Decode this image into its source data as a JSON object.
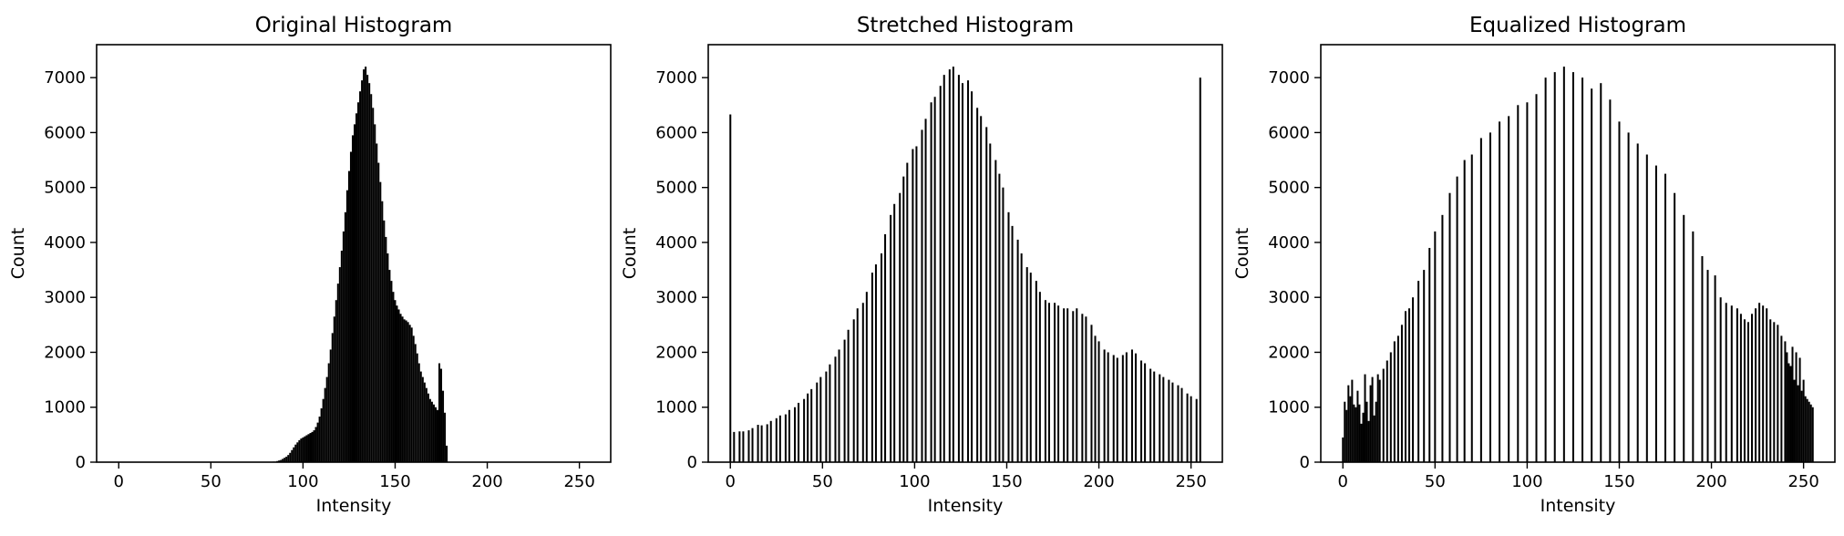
{
  "figure": {
    "background": "#ffffff",
    "bar_color": "#000000"
  },
  "chart_data": [
    {
      "type": "bar",
      "title": "Original Histogram",
      "xlabel": "Intensity",
      "ylabel": "Count",
      "xlim": [
        -12,
        267
      ],
      "ylim": [
        0,
        7600
      ],
      "xticks": [
        0,
        50,
        100,
        150,
        200,
        250
      ],
      "yticks": [
        0,
        1000,
        2000,
        3000,
        4000,
        5000,
        6000,
        7000
      ],
      "bar_width": 1,
      "series": [
        {
          "description": "Pixel counts per intensity 0-255 (counts are 0 outside 84-205)",
          "x_start": 84,
          "values": [
            10,
            10,
            20,
            30,
            40,
            60,
            80,
            100,
            130,
            170,
            220,
            270,
            320,
            360,
            400,
            430,
            450,
            470,
            490,
            510,
            530,
            550,
            580,
            640,
            720,
            830,
            980,
            1150,
            1350,
            1550,
            1800,
            2050,
            2350,
            2650,
            2950,
            3250,
            3550,
            3850,
            4200,
            4550,
            4950,
            5300,
            5650,
            5950,
            6150,
            6350,
            6550,
            6750,
            6950,
            7150,
            7200,
            7050,
            6900,
            6700,
            6450,
            6150,
            5800,
            5450,
            5100,
            4750,
            4400,
            4100,
            3800,
            3500,
            3300,
            3100,
            2950,
            2850,
            2780,
            2700,
            2650,
            2600,
            2580,
            2550,
            2500,
            2450,
            2300,
            2150,
            1980,
            1800,
            1650,
            1550,
            1450,
            1350,
            1250,
            1150,
            1100,
            1050,
            1000,
            950,
            1800,
            1700,
            1300,
            900,
            300,
            0,
            0,
            0,
            0,
            0,
            0,
            0,
            0,
            0,
            0,
            0,
            0,
            0,
            0,
            0,
            0,
            0,
            0,
            0,
            0,
            0,
            0,
            0,
            0,
            0,
            0,
            0,
            0
          ]
        }
      ]
    },
    {
      "type": "bar",
      "title": "Stretched Histogram",
      "xlabel": "Intensity",
      "ylabel": "Count",
      "xlim": [
        -12,
        267
      ],
      "ylim": [
        0,
        7600
      ],
      "xticks": [
        0,
        50,
        100,
        150,
        200,
        250
      ],
      "yticks": [
        0,
        1000,
        2000,
        3000,
        4000,
        5000,
        6000,
        7000
      ],
      "bar_width": 1,
      "series": [
        {
          "x": [
            0,
            2,
            5,
            7,
            10,
            12,
            15,
            17,
            20,
            22,
            25,
            27,
            30,
            32,
            35,
            37,
            40,
            42,
            44,
            47,
            49,
            52,
            54,
            57,
            59,
            62,
            64,
            67,
            69,
            72,
            74,
            77,
            79,
            82,
            84,
            87,
            89,
            92,
            94,
            96,
            99,
            101,
            104,
            106,
            109,
            111,
            114,
            116,
            119,
            121,
            124,
            126,
            129,
            131,
            134,
            136,
            139,
            141,
            144,
            146,
            148,
            151,
            153,
            156,
            158,
            161,
            163,
            166,
            168,
            171,
            173,
            176,
            178,
            181,
            183,
            186,
            188,
            191,
            193,
            196,
            198,
            200,
            203,
            205,
            208,
            210,
            213,
            215,
            218,
            220,
            223,
            225,
            228,
            230,
            233,
            235,
            238,
            240,
            243,
            245,
            248,
            250,
            253,
            255
          ],
          "y": [
            6330,
            550,
            560,
            560,
            580,
            620,
            680,
            670,
            690,
            750,
            800,
            850,
            870,
            950,
            1000,
            1080,
            1150,
            1250,
            1330,
            1450,
            1550,
            1650,
            1780,
            1920,
            2050,
            2230,
            2410,
            2600,
            2800,
            2900,
            3100,
            3450,
            3600,
            3800,
            4150,
            4500,
            4700,
            4900,
            5200,
            5450,
            5700,
            5750,
            6050,
            6250,
            6550,
            6650,
            6850,
            7050,
            7150,
            7200,
            7050,
            6900,
            6950,
            6750,
            6450,
            6300,
            6100,
            5800,
            5500,
            5250,
            5000,
            4550,
            4300,
            4050,
            3800,
            3550,
            3450,
            3300,
            3100,
            2950,
            2900,
            2900,
            2850,
            2800,
            2800,
            2750,
            2800,
            2700,
            2650,
            2500,
            2300,
            2200,
            2050,
            2000,
            1950,
            1900,
            1950,
            2000,
            2050,
            1980,
            1850,
            1800,
            1700,
            1650,
            1600,
            1550,
            1500,
            1450,
            1400,
            1350,
            1250,
            1200,
            1150,
            7000
          ]
        }
      ]
    },
    {
      "type": "bar",
      "title": "Equalized Histogram",
      "xlabel": "Intensity",
      "ylabel": "Count",
      "xlim": [
        -12,
        267
      ],
      "ylim": [
        0,
        7600
      ],
      "xticks": [
        0,
        50,
        100,
        150,
        200,
        250
      ],
      "yticks": [
        0,
        1000,
        2000,
        3000,
        4000,
        5000,
        6000,
        7000
      ],
      "bar_width": 1,
      "series": [
        {
          "x": [
            0,
            1,
            2,
            3,
            4,
            5,
            6,
            7,
            8,
            9,
            10,
            11,
            12,
            13,
            14,
            15,
            16,
            17,
            18,
            19,
            20,
            22,
            24,
            26,
            28,
            30,
            32,
            34,
            36,
            38,
            41,
            44,
            47,
            50,
            54,
            58,
            62,
            66,
            70,
            75,
            80,
            85,
            90,
            95,
            100,
            105,
            110,
            115,
            120,
            125,
            130,
            135,
            140,
            145,
            150,
            155,
            160,
            165,
            170,
            175,
            180,
            185,
            190,
            195,
            198,
            202,
            205,
            208,
            211,
            214,
            216,
            218,
            220,
            222,
            224,
            226,
            228,
            230,
            232,
            234,
            236,
            238,
            240,
            241,
            242,
            243,
            244,
            245,
            246,
            247,
            248,
            249,
            250,
            251,
            252,
            253,
            254,
            255
          ],
          "y": [
            450,
            1100,
            950,
            1400,
            1200,
            1500,
            1050,
            1000,
            1300,
            1050,
            700,
            900,
            1600,
            1100,
            750,
            1400,
            1550,
            850,
            1100,
            1600,
            1500,
            1700,
            1850,
            2000,
            2200,
            2300,
            2500,
            2750,
            2800,
            3000,
            3300,
            3500,
            3900,
            4200,
            4500,
            4900,
            5200,
            5500,
            5600,
            5900,
            6000,
            6200,
            6300,
            6500,
            6550,
            6700,
            7000,
            7100,
            7200,
            7100,
            7000,
            6800,
            6900,
            6600,
            6200,
            6000,
            5800,
            5600,
            5400,
            5250,
            4900,
            4500,
            4200,
            3750,
            3500,
            3400,
            3000,
            2900,
            2850,
            2800,
            2700,
            2600,
            2550,
            2700,
            2800,
            2900,
            2850,
            2800,
            2600,
            2550,
            2500,
            2300,
            2200,
            2000,
            1800,
            1750,
            2100,
            1500,
            2000,
            1400,
            1900,
            1300,
            1500,
            1200,
            1150,
            1100,
            1050,
            1000
          ]
        }
      ]
    }
  ]
}
